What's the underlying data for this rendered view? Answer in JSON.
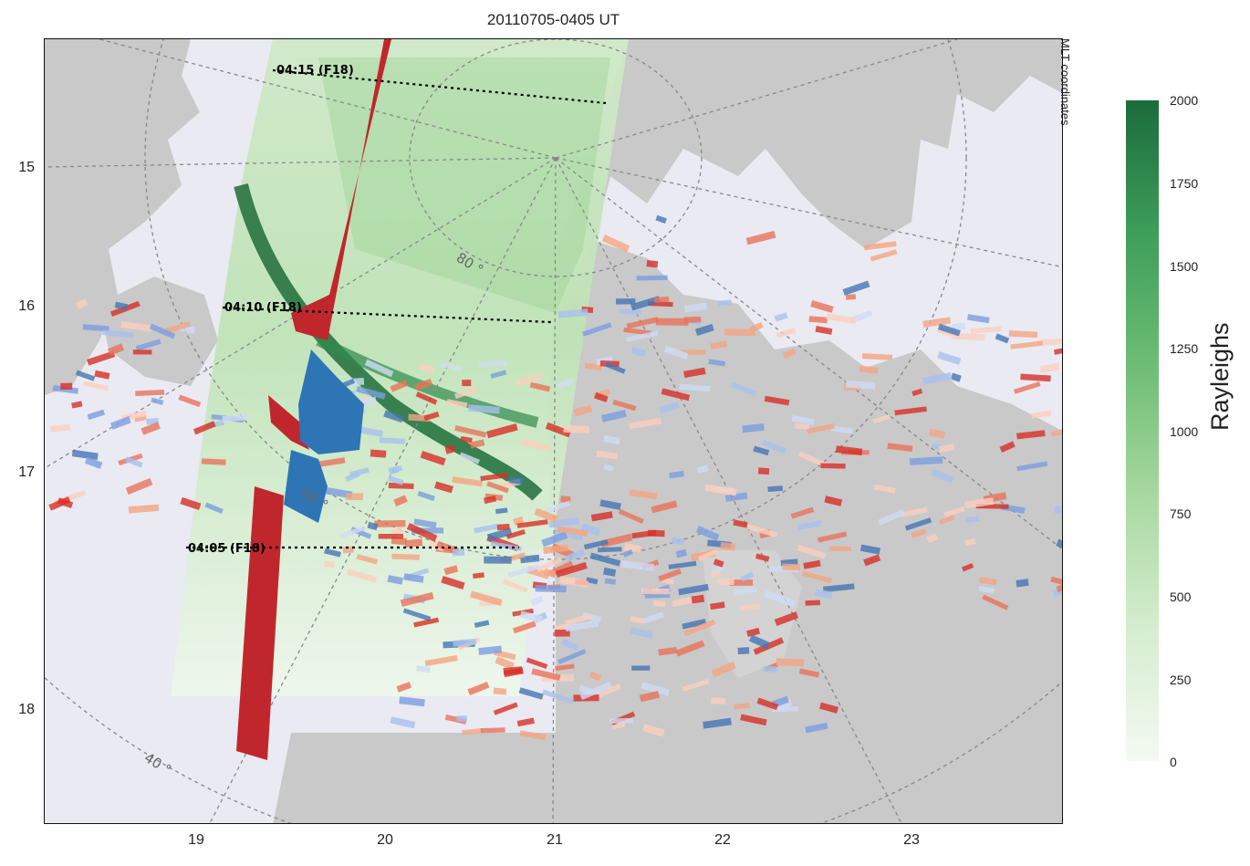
{
  "title": "20110705-0405 UT",
  "coordinate_system_label": "MLT coordinates",
  "y_axis_ticks": [
    "15",
    "16",
    "17",
    "18"
  ],
  "x_axis_ticks": [
    "19",
    "20",
    "21",
    "22",
    "23"
  ],
  "latitude_labels": [
    "80 °",
    "60 °",
    "40 °"
  ],
  "satellite_passes": [
    {
      "label": "04:15 (F18)"
    },
    {
      "label": "04:10 (F18)"
    },
    {
      "label": "04:05 (F18)"
    }
  ],
  "colorbar": {
    "label": "Rayleighs",
    "ticks": [
      "2000",
      "1750",
      "1500",
      "1250",
      "1000",
      "750",
      "500",
      "250",
      "0"
    ],
    "range": [
      0,
      2000
    ],
    "colormap": "Greens"
  },
  "colors": {
    "land": "#c9c9c9",
    "ocean": "#eaeaf2",
    "positive_velocity": "#d73027",
    "negative_velocity": "#4575b4",
    "flow_red": "#c0272d",
    "flow_blue": "#2e75b6"
  }
}
